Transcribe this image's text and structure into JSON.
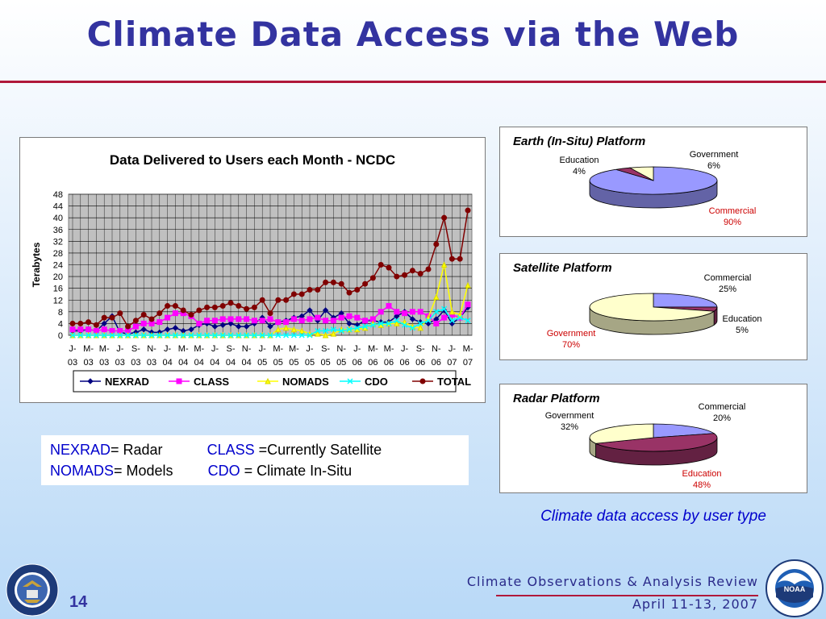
{
  "slide": {
    "title": "Climate Data Access via the Web",
    "page_number": "14",
    "footer_title": "Climate Observations & Analysis Review",
    "footer_date": "April 11-13, 2007",
    "caption": "Climate data access by user type",
    "logo_left_text": "DEPARTMENT OF COMMERCE · UNITED STATES OF AMERICA",
    "logo_right_text": "NOAA · NATIONAL OCEANIC AND ATMOSPHERIC ADMINISTRATION · U.S. DEPARTMENT OF COMMERCE",
    "logo_right_mark": "NOAA",
    "colors": {
      "title": "#3333a0",
      "rule": "#b0183a",
      "key_text": "#0000cc"
    }
  },
  "definitions": {
    "line1": [
      {
        "key": "NEXRAD",
        "text": "= Radar"
      },
      {
        "key": "CLASS",
        "text": " =Currently Satellite"
      }
    ],
    "line2": [
      {
        "key": "NOMADS",
        "text": "= Models"
      },
      {
        "key": "CDO",
        "text": " = Climate In-Situ"
      }
    ]
  },
  "chart_data": [
    {
      "type": "line",
      "title": "Data Delivered to Users each Month - NCDC",
      "xlabel": "",
      "ylabel": "Terabytes",
      "ylim": [
        0,
        48
      ],
      "yticks": [
        0,
        4,
        8,
        12,
        16,
        20,
        24,
        28,
        32,
        36,
        40,
        44,
        48
      ],
      "grid": true,
      "legend_position": "bottom",
      "tick_labels": [
        [
          "J-",
          "03"
        ],
        [
          "M-",
          "03"
        ],
        [
          "M-",
          "03"
        ],
        [
          "J-",
          "03"
        ],
        [
          "S-",
          "03"
        ],
        [
          "N-",
          "03"
        ],
        [
          "J-",
          "04"
        ],
        [
          "M-",
          "04"
        ],
        [
          "M-",
          "04"
        ],
        [
          "J-",
          "04"
        ],
        [
          "S-",
          "04"
        ],
        [
          "N-",
          "04"
        ],
        [
          "J-",
          "05"
        ],
        [
          "M-",
          "05"
        ],
        [
          "M-",
          "05"
        ],
        [
          "J-",
          "05"
        ],
        [
          "S-",
          "05"
        ],
        [
          "N-",
          "05"
        ],
        [
          "J-",
          "06"
        ],
        [
          "M-",
          "06"
        ],
        [
          "M-",
          "06"
        ],
        [
          "J-",
          "06"
        ],
        [
          "S-",
          "06"
        ],
        [
          "N-",
          "06"
        ],
        [
          "J-",
          "07"
        ],
        [
          "M-",
          "07"
        ]
      ],
      "x": [
        "Jan-03",
        "Feb-03",
        "Mar-03",
        "Apr-03",
        "May-03",
        "Jun-03",
        "Jul-03",
        "Aug-03",
        "Sep-03",
        "Oct-03",
        "Nov-03",
        "Dec-03",
        "Jan-04",
        "Feb-04",
        "Mar-04",
        "Apr-04",
        "May-04",
        "Jun-04",
        "Jul-04",
        "Aug-04",
        "Sep-04",
        "Oct-04",
        "Nov-04",
        "Dec-04",
        "Jan-05",
        "Feb-05",
        "Mar-05",
        "Apr-05",
        "May-05",
        "Jun-05",
        "Jul-05",
        "Aug-05",
        "Sep-05",
        "Oct-05",
        "Nov-05",
        "Dec-05",
        "Jan-06",
        "Feb-06",
        "Mar-06",
        "Apr-06",
        "May-06",
        "Jun-06",
        "Jul-06",
        "Aug-06",
        "Sep-06",
        "Oct-06",
        "Nov-06",
        "Dec-06",
        "Jan-07",
        "Feb-07",
        "Mar-07"
      ],
      "series": [
        {
          "name": "NEXRAD",
          "color": "#000080",
          "marker": "diamond",
          "values": [
            1.5,
            1.5,
            2,
            1.5,
            4,
            6.5,
            1,
            0.5,
            1,
            2,
            1,
            1,
            2,
            2.5,
            1.5,
            2,
            3.5,
            4,
            3,
            3.5,
            4,
            3,
            3,
            4,
            6,
            3,
            4.5,
            5,
            6,
            6.5,
            8.5,
            5,
            8.5,
            6,
            7.5,
            4,
            3.5,
            5,
            5,
            4.5,
            4.5,
            6.5,
            8,
            5.5,
            4.5,
            4,
            5.5,
            8.5,
            4,
            6,
            9.5
          ]
        },
        {
          "name": "CLASS",
          "color": "#ff00ff",
          "marker": "square",
          "values": [
            2,
            2,
            2,
            1.5,
            2,
            1.5,
            1.5,
            1.5,
            3,
            4,
            4,
            4.5,
            6,
            7.5,
            7.5,
            6.5,
            4,
            5,
            5,
            5.5,
            5.5,
            5.5,
            5.5,
            5,
            5,
            5.5,
            4.5,
            4.5,
            5.5,
            5,
            5.5,
            6,
            5,
            5,
            6,
            6.5,
            6,
            5,
            5.5,
            8,
            10,
            8,
            7.5,
            8,
            8,
            6.5,
            4,
            6,
            7,
            6,
            10.5
          ]
        },
        {
          "name": "NOMADS",
          "color": "#ffff00",
          "marker": "triangle",
          "values": [
            0,
            0,
            0,
            0,
            0,
            0,
            0,
            0,
            0,
            0,
            0,
            0,
            0,
            0,
            0,
            0,
            0,
            0,
            0,
            0,
            0,
            0,
            0,
            0,
            0,
            0,
            2,
            2.5,
            2,
            1.5,
            0.5,
            0.5,
            0,
            0.5,
            2,
            2,
            2,
            2.5,
            4,
            3.5,
            4,
            4,
            4.5,
            3,
            2.5,
            6,
            13,
            24,
            8,
            7,
            17
          ]
        },
        {
          "name": "CDO",
          "color": "#00ffff",
          "marker": "x",
          "values": [
            0,
            0,
            0,
            0,
            0,
            0,
            0,
            0,
            0,
            0,
            0,
            0,
            0,
            0,
            0,
            0,
            0,
            0,
            0,
            0,
            0,
            0,
            0,
            0,
            0,
            0,
            0,
            0,
            0,
            0,
            0,
            1.5,
            1.5,
            2,
            1.5,
            2,
            2.5,
            3,
            3.5,
            4,
            4,
            5,
            3.5,
            2.5,
            4,
            5,
            8,
            9,
            5,
            6,
            5
          ]
        },
        {
          "name": "TOTAL",
          "color": "#800000",
          "marker": "circle",
          "values": [
            4,
            4,
            4.5,
            3.5,
            6,
            6,
            7.5,
            3,
            5,
            7,
            5.5,
            7.5,
            10,
            10,
            8.5,
            7,
            8.5,
            9.5,
            9.5,
            10,
            11,
            10,
            9,
            9.5,
            12,
            7.5,
            12,
            12,
            14,
            14,
            15.5,
            15.5,
            18,
            18,
            17.5,
            14.5,
            15.5,
            17.5,
            19.5,
            24,
            23,
            20,
            20.5,
            22,
            21,
            22.5,
            31,
            40,
            26,
            26,
            42.5
          ]
        }
      ]
    },
    {
      "type": "pie",
      "title": "Earth (In-Situ) Platform",
      "slices": [
        {
          "label": "Commercial",
          "value": 90,
          "text": "90%",
          "color": "#9999ff"
        },
        {
          "label": "Education",
          "value": 4,
          "text": "4%",
          "color": "#993366"
        },
        {
          "label": "Government",
          "value": 6,
          "text": "6%",
          "color": "#ffffcc"
        }
      ]
    },
    {
      "type": "pie",
      "title": "Satellite Platform",
      "slices": [
        {
          "label": "Commercial",
          "value": 25,
          "text": "25%",
          "color": "#9999ff"
        },
        {
          "label": "Education",
          "value": 5,
          "text": "5%",
          "color": "#993366"
        },
        {
          "label": "Government",
          "value": 70,
          "text": "70%",
          "color": "#ffffcc"
        }
      ]
    },
    {
      "type": "pie",
      "title": "Radar Platform",
      "slices": [
        {
          "label": "Commercial",
          "value": 20,
          "text": "20%",
          "color": "#9999ff"
        },
        {
          "label": "Education",
          "value": 48,
          "text": "48%",
          "color": "#993366"
        },
        {
          "label": "Government",
          "value": 32,
          "text": "32%",
          "color": "#ffffcc"
        }
      ]
    }
  ]
}
